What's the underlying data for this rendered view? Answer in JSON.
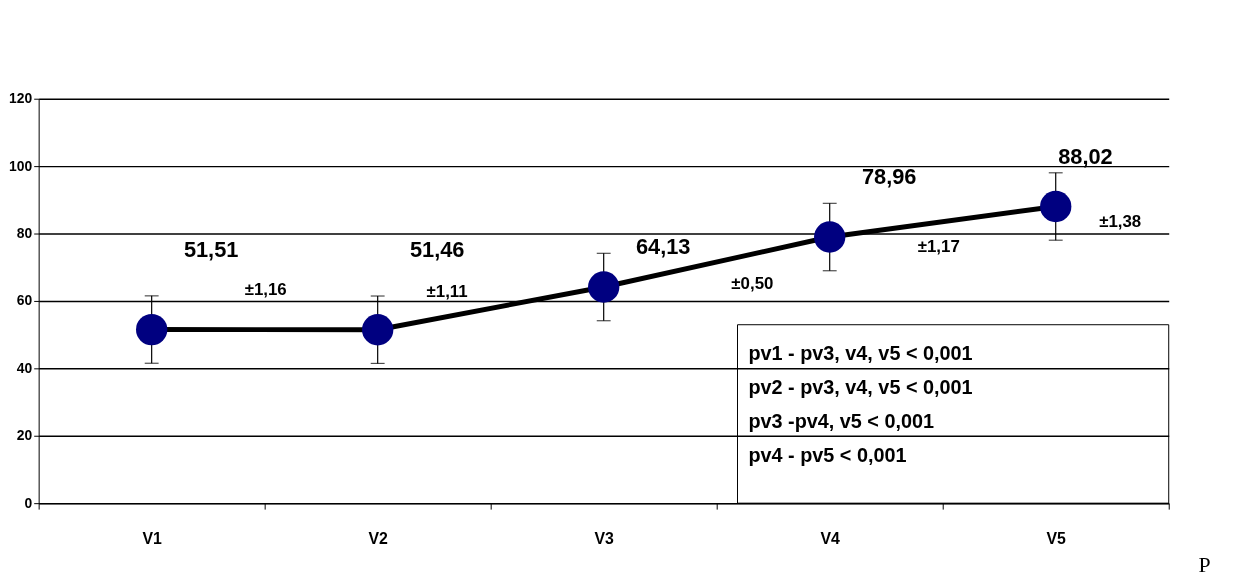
{
  "chart_data": {
    "type": "line",
    "categories": [
      "V1",
      "V2",
      "V3",
      "V4",
      "V5"
    ],
    "series": [
      {
        "color": "#000080",
        "values": [
          51.51,
          51.46,
          64.13,
          78.96,
          88.02
        ],
        "errors": [
          10,
          10,
          10,
          10,
          10
        ],
        "value_labels": [
          "51,51",
          "51,46",
          "64,13",
          "78,96",
          "88,02"
        ]
      }
    ],
    "ylim": [
      0,
      120
    ],
    "yticks": [
      0,
      20,
      40,
      60,
      80,
      100,
      120
    ],
    "grid": "y",
    "marker": "circle",
    "line_style": "solid",
    "annotations": [
      "±1,16",
      "±1,11",
      "±0,50",
      "±1,17",
      "±1,38",
      "pv1 - pv3, v4, v5 < 0,001",
      "pv2 - pv3, v4, v5 < 0,001",
      "pv3 -pv4, v5 < 0,001",
      "pv4 - pv5 < 0,001",
      "P"
    ]
  }
}
